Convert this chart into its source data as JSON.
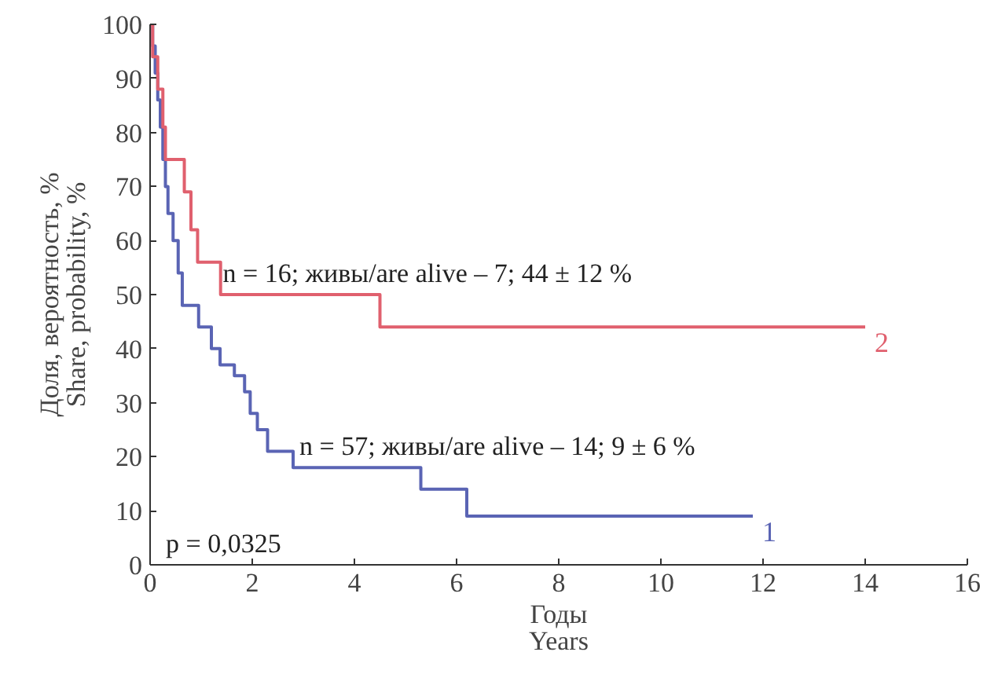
{
  "chart_data": {
    "type": "step",
    "xlabel": "Годы\nYears",
    "ylabel": "Доля, вероятность, %\nShare, probability, %",
    "xlim": [
      0,
      16
    ],
    "ylim": [
      0,
      100
    ],
    "xticks": [
      0,
      2,
      4,
      6,
      8,
      10,
      12,
      14,
      16
    ],
    "yticks": [
      0,
      10,
      20,
      30,
      40,
      50,
      60,
      70,
      80,
      90,
      100
    ],
    "line_style": "solid",
    "series": [
      {
        "name": "1",
        "color": "#5a64b4",
        "x": [
          0,
          0.05,
          0.1,
          0.15,
          0.2,
          0.25,
          0.3,
          0.35,
          0.45,
          0.55,
          0.63,
          0.95,
          1.2,
          1.37,
          1.65,
          1.85,
          1.96,
          2.1,
          2.3,
          2.8,
          5.3,
          6.2,
          11.8
        ],
        "values": [
          100,
          96,
          91,
          86,
          81,
          75,
          70,
          65,
          60,
          54,
          48,
          44,
          40,
          37,
          35,
          32,
          28,
          25,
          21,
          18,
          14,
          9,
          9
        ]
      },
      {
        "name": "2",
        "color": "#e0606e",
        "x": [
          0,
          0.05,
          0.15,
          0.25,
          0.3,
          0.67,
          0.8,
          0.93,
          1.38,
          4.5,
          14
        ],
        "values": [
          100,
          94,
          88,
          81,
          75,
          69,
          62,
          56,
          50,
          44,
          44
        ]
      }
    ],
    "annotations": [
      {
        "text": "n = 16; живы/are alive – 7; 44 ± 12 %",
        "x": 1.3,
        "y": 50
      },
      {
        "text": "n = 57; живы/are alive – 14; 9 ± 6 %",
        "x": 2.8,
        "y": 18
      },
      "p = 0,0325"
    ]
  }
}
